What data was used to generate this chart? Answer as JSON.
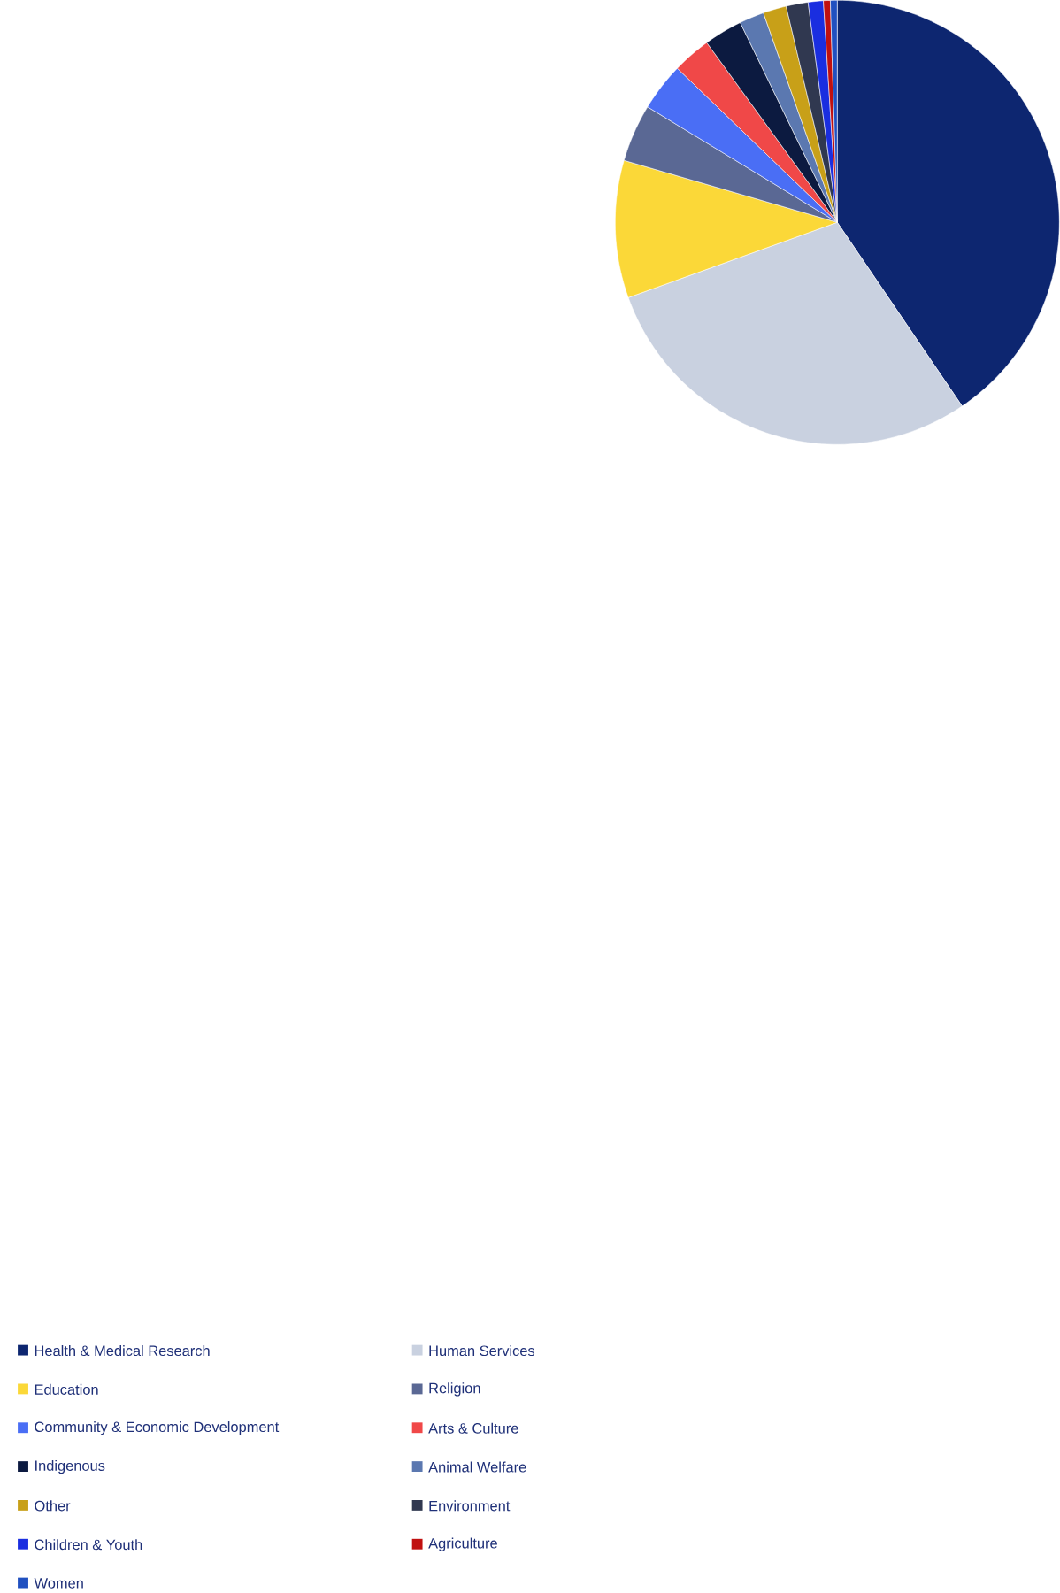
{
  "chart_data": {
    "type": "pie",
    "categories": [
      "Health & Medical Research",
      "Human Services",
      "Education",
      "Religion",
      "Community & Economic Development",
      "Arts & Culture",
      "Indigenous",
      "Animal Welfare",
      "Other",
      "Environment",
      "Children & Youth",
      "Agriculture",
      "Women"
    ],
    "values": [
      40.5,
      29,
      10,
      4.2,
      3.5,
      2.8,
      2.8,
      1.8,
      1.7,
      1.6,
      1.1,
      0.5,
      0.5
    ],
    "colors": [
      "#0d2670",
      "#c9d1e0",
      "#fbd838",
      "#5a6894",
      "#4a6ef5",
      "#f04848",
      "#0c1a40",
      "#5b78b0",
      "#c8a018",
      "#303850",
      "#1a2ee0",
      "#c01010",
      "#2050c0"
    ],
    "legend": "bottom"
  }
}
